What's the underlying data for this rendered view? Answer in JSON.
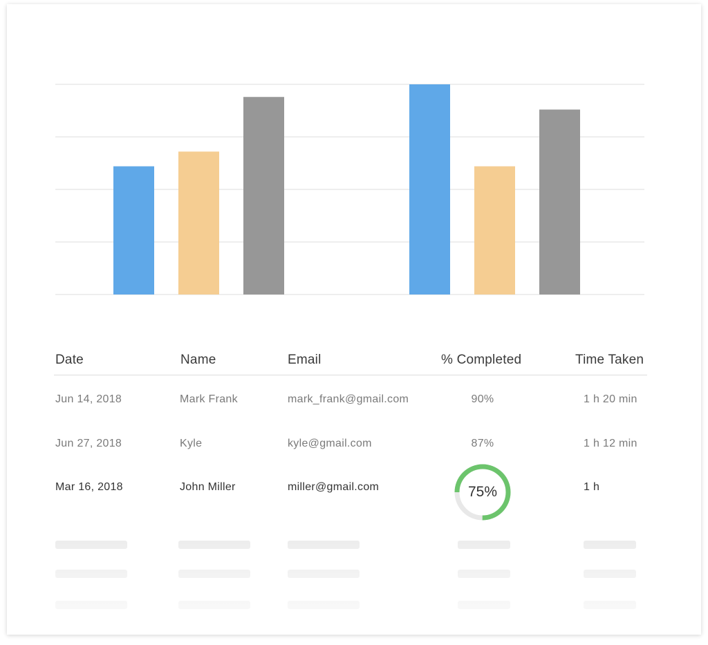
{
  "chart_data": {
    "type": "bar",
    "categories": [
      "",
      ""
    ],
    "series": [
      {
        "values": [
          61,
          100
        ],
        "color": "#5fa8e8"
      },
      {
        "values": [
          68,
          61
        ],
        "color": "#f5cd92"
      },
      {
        "values": [
          94,
          88
        ],
        "color": "#979797"
      }
    ],
    "ylim": [
      0,
      100
    ],
    "grid": true,
    "title": "",
    "xlabel": "",
    "ylabel": ""
  },
  "table": {
    "headers": {
      "date": "Date",
      "name": "Name",
      "email": "Email",
      "completed": "% Completed",
      "time": "Time Taken"
    },
    "rows": [
      {
        "date": "Jun 14, 2018",
        "name": "Mark Frank",
        "email": "mark_frank@gmail.com",
        "completed": "90%",
        "time": "1 h 20 min"
      },
      {
        "date": "Jun 27, 2018",
        "name": "Kyle",
        "email": "kyle@gmail.com",
        "completed": "87%",
        "time": "1 h 12 min"
      },
      {
        "date": "Mar 16, 2018",
        "name": "John Miller",
        "email": "miller@gmail.com",
        "completed": "75%",
        "time": "1 h"
      }
    ],
    "active_progress": 0.75,
    "colors": {
      "ring": "#6cc46c",
      "ring_track": "#e8e8e8"
    }
  }
}
